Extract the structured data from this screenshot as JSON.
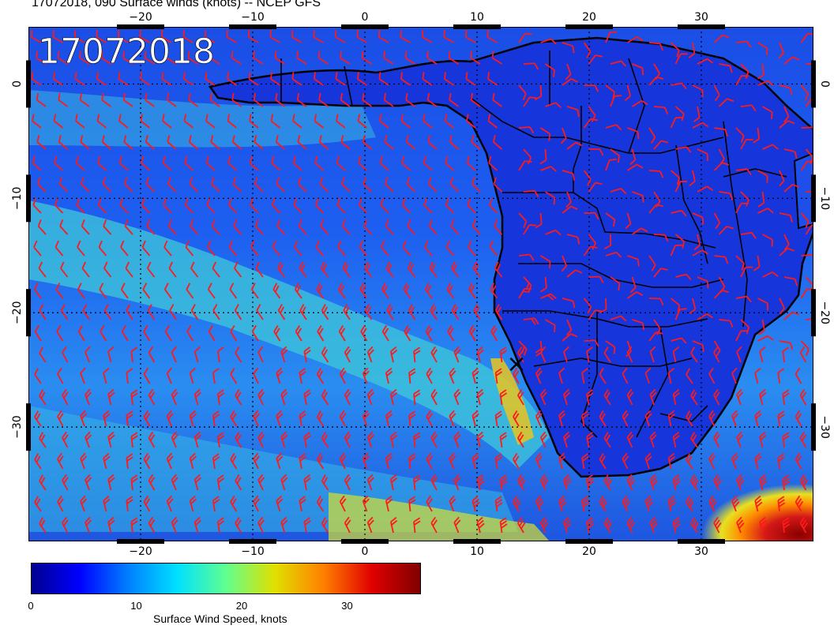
{
  "title": "17072018, 090 Surface winds (knots) -- NCEP GFS",
  "date_stamp": "17072018",
  "map": {
    "lon_ticks": [
      "−20",
      "−10",
      "0",
      "10",
      "20",
      "30"
    ],
    "lon_values": [
      -20,
      -10,
      0,
      10,
      20,
      30
    ],
    "lat_ticks": [
      "0",
      "−10",
      "−20",
      "−30"
    ],
    "lat_values": [
      0,
      -10,
      -20,
      -30
    ],
    "lon_range": [
      -30,
      40
    ],
    "lat_range": [
      -40,
      5
    ],
    "colors": {
      "ocean_calm": "#0b2fd1",
      "land": "#1a3fe0",
      "moderate": "#35c7d8",
      "strong": "#f0d020",
      "very_strong": "#c01010",
      "barbs": "#ff1a1a",
      "coast": "#000000"
    },
    "marker": "×"
  },
  "colorbar": {
    "title": "Surface Wind Speed, knots",
    "tick_labels": [
      "0",
      "10",
      "20",
      "30"
    ],
    "tick_values": [
      0,
      10,
      20,
      30
    ],
    "range": [
      0,
      37
    ],
    "stops": [
      "#00008f",
      "#0000ff",
      "#0080ff",
      "#00e0ff",
      "#60ff90",
      "#e0e000",
      "#ff8000",
      "#e00000",
      "#800000"
    ]
  }
}
